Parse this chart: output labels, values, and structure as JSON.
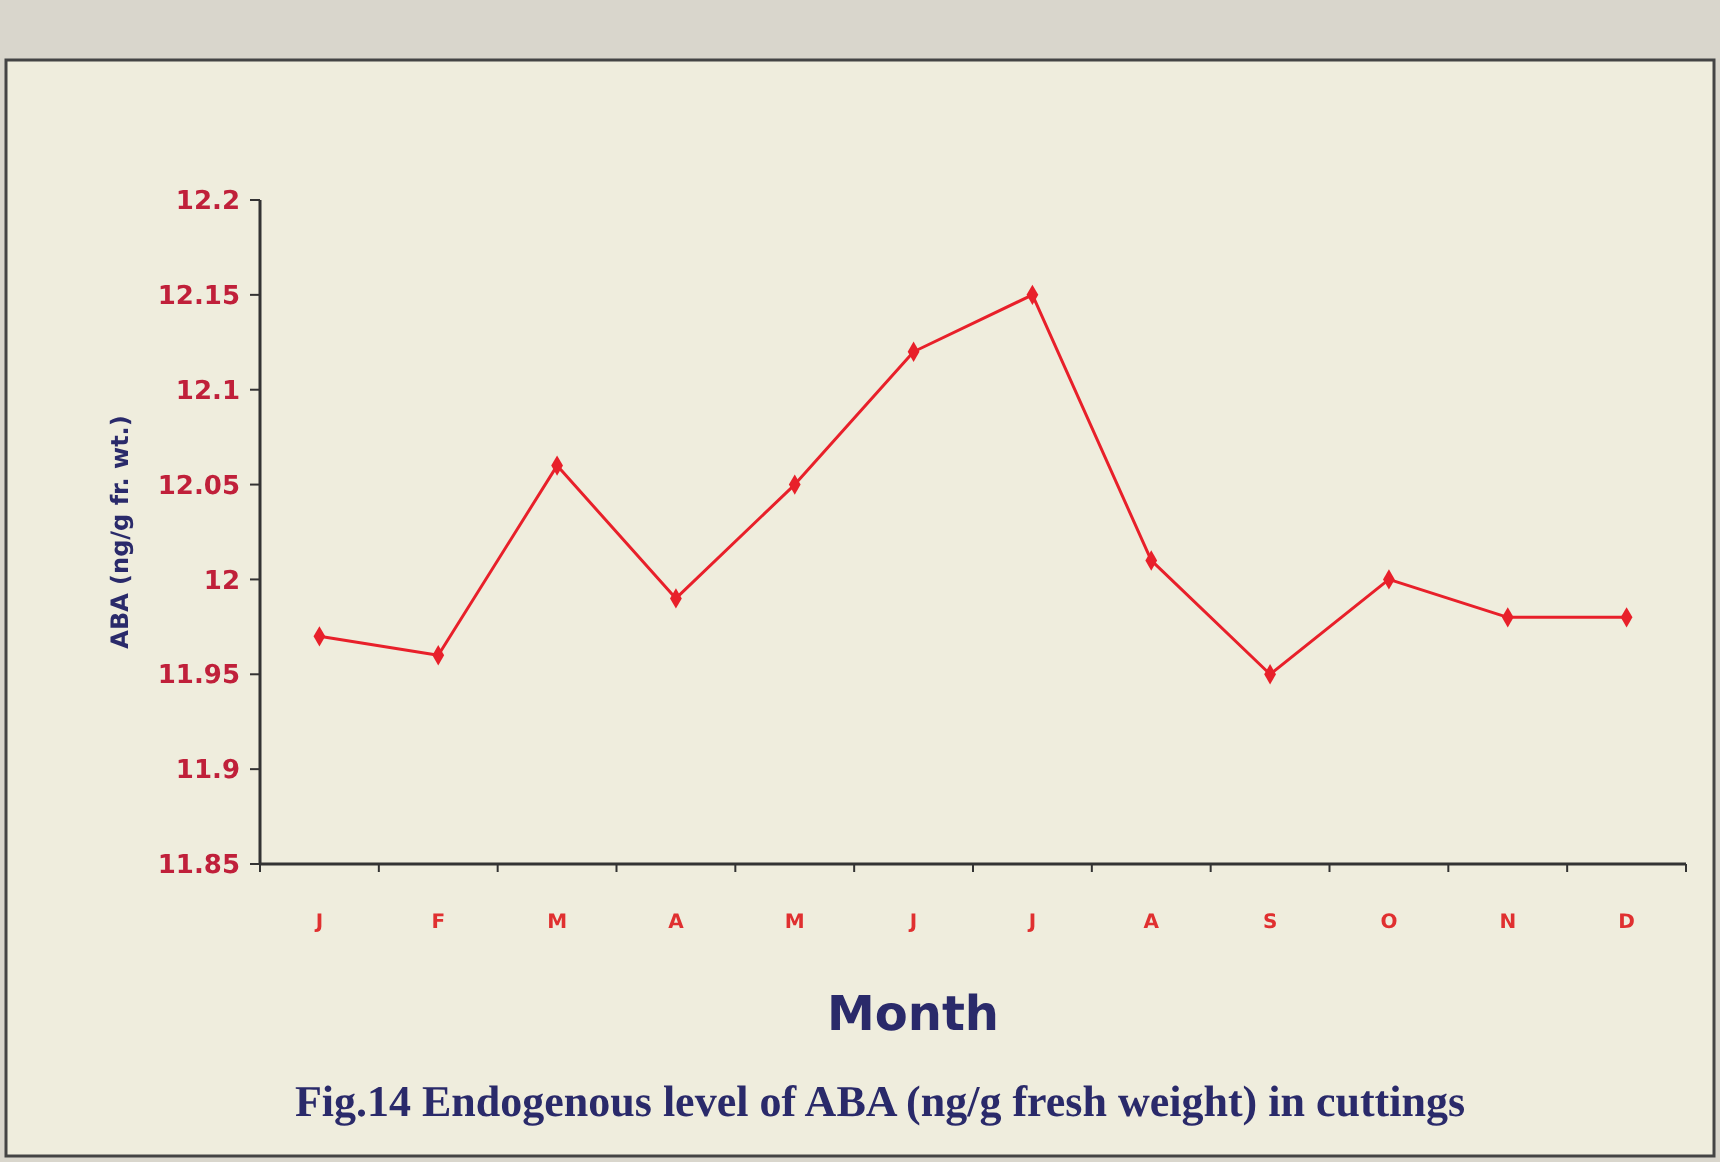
{
  "chart_data": {
    "type": "line",
    "xlabel": "Month",
    "ylabel": "ABA (ng/g fr. wt.)",
    "annotations": [
      "Fig.14 Endogenous level of ABA (ng/g fresh weight) in cuttings"
    ],
    "categories": [
      "J",
      "F",
      "M",
      "A",
      "M",
      "J",
      "J",
      "A",
      "S",
      "O",
      "N",
      "D"
    ],
    "series": [
      {
        "color": "#e8202a",
        "values": [
          11.97,
          11.96,
          12.06,
          11.99,
          12.05,
          12.12,
          12.15,
          12.01,
          11.95,
          12.0,
          11.98,
          11.98
        ]
      }
    ],
    "ylim": [
      11.85,
      12.2
    ],
    "yticks": [
      11.85,
      11.9,
      11.95,
      12,
      12.05,
      12.1,
      12.15,
      12.2
    ],
    "grid": false,
    "marker": "diamond",
    "line_style": "solid"
  }
}
